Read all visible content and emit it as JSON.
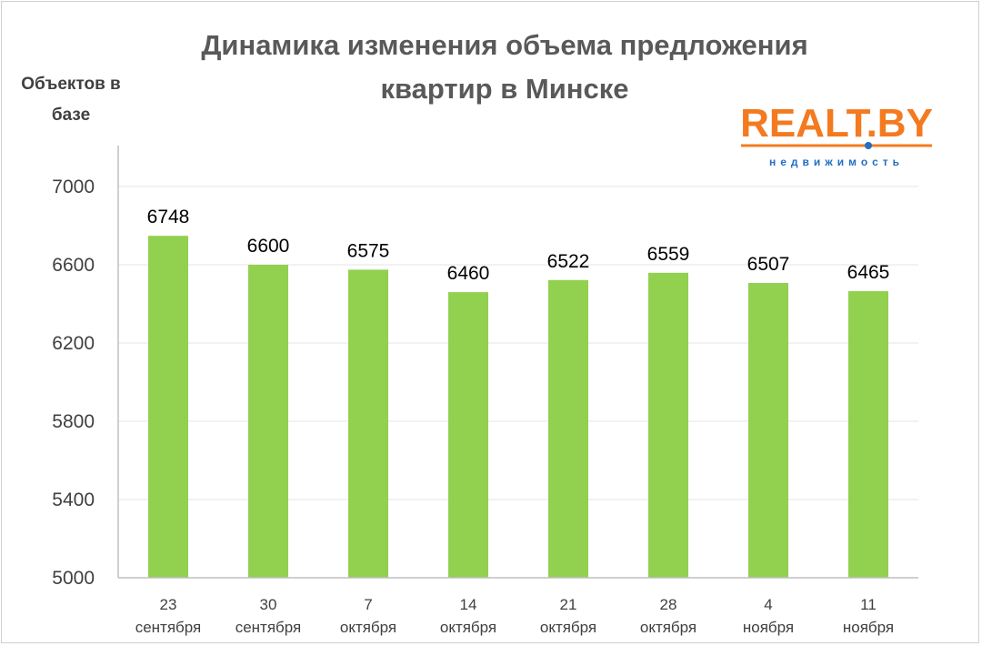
{
  "chart_data": {
    "type": "bar",
    "title_lines": [
      "Динамика изменения объема предложения",
      "квартир в Минске"
    ],
    "ylabel_lines": [
      "Объектов в",
      "базе"
    ],
    "xlabel": "",
    "categories": [
      [
        "23",
        "сентября"
      ],
      [
        "30",
        "сентября"
      ],
      [
        "7",
        "октября"
      ],
      [
        "14",
        "октября"
      ],
      [
        "21",
        "октября"
      ],
      [
        "28",
        "октября"
      ],
      [
        "4",
        "ноября"
      ],
      [
        "11",
        "ноября"
      ]
    ],
    "values": [
      6748,
      6600,
      6575,
      6460,
      6522,
      6559,
      6507,
      6465
    ],
    "ylim": [
      5000,
      7000
    ],
    "yticks": [
      5000,
      5400,
      5800,
      6200,
      6600,
      7000
    ],
    "grid": true,
    "legend": "none",
    "data_labels": true
  },
  "logo": {
    "text": "REALT.BY",
    "subtitle": "недвижимость"
  },
  "colors": {
    "bar": "#92d050",
    "grid": "#e6e6e6",
    "axis": "#bfbfbf",
    "logo_orange": "#f47a20",
    "logo_blue": "#1f6fc5"
  }
}
